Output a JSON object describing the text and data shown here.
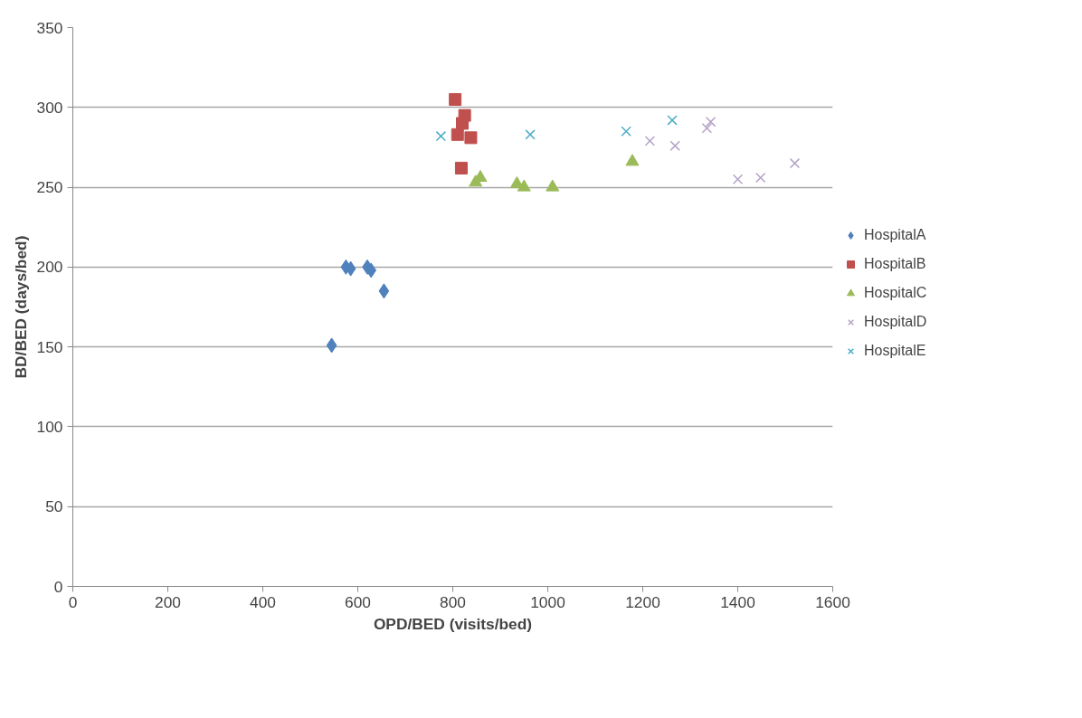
{
  "chart_data": {
    "type": "scatter",
    "xlabel": "OPD/BED (visits/bed)",
    "ylabel": "BD/BED (days/bed)",
    "xlim": [
      0,
      1600
    ],
    "xticks": [
      0,
      200,
      400,
      600,
      800,
      1000,
      1200,
      1400,
      1600
    ],
    "ylim": [
      0,
      350
    ],
    "yticks": [
      0,
      50,
      100,
      150,
      200,
      250,
      300,
      350
    ],
    "grid": "y",
    "legend": "right",
    "series": [
      {
        "name": "HospitalA",
        "color": "#4f81bd",
        "marker": "diamond",
        "x": [
          545,
          575,
          585,
          620,
          628,
          655
        ],
        "values": [
          151,
          200,
          199,
          200,
          198,
          185
        ]
      },
      {
        "name": "HospitalB",
        "color": "#c0504d",
        "marker": "square",
        "x": [
          805,
          825,
          820,
          810,
          838,
          818
        ],
        "values": [
          305,
          295,
          290,
          283,
          281,
          262
        ]
      },
      {
        "name": "HospitalC",
        "color": "#9bbb59",
        "marker": "triangle",
        "x": [
          848,
          858,
          935,
          950,
          1010,
          1178
        ],
        "values": [
          253,
          256,
          252,
          250,
          250,
          266
        ]
      },
      {
        "name": "HospitalD",
        "color": "#b3a2c7",
        "marker": "cross",
        "x": [
          1215,
          1268,
          1335,
          1343,
          1400,
          1448,
          1520
        ],
        "values": [
          279,
          276,
          287,
          291,
          255,
          256,
          265
        ]
      },
      {
        "name": "HospitalE",
        "color": "#4bacc6",
        "marker": "cross",
        "x": [
          775,
          963,
          1165,
          1262
        ],
        "values": [
          282,
          283,
          285,
          292
        ]
      }
    ]
  }
}
